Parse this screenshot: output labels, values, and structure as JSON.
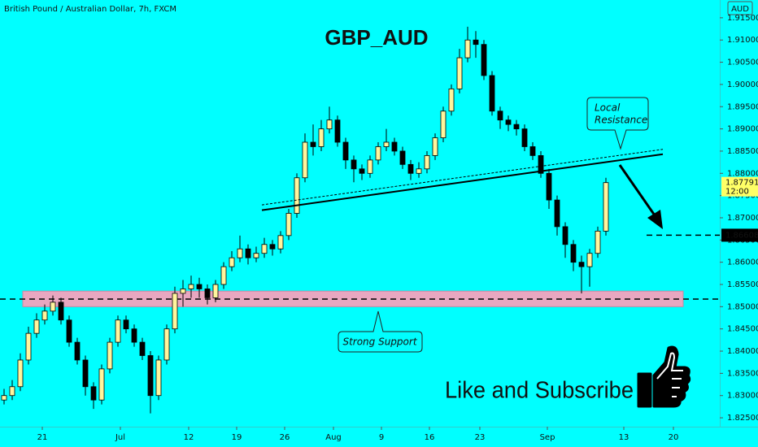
{
  "chart_data": {
    "type": "candlestick",
    "title": "GBP_AUD",
    "symbol": "British Pound / Australian Dollar, 7h, FXCM",
    "currency": "AUD",
    "countdown": "12:00",
    "up_color": "#fff59d",
    "down_color": "#000000",
    "background": "#00ffff",
    "x": [
      0.5,
      1.5,
      2.5,
      3.5,
      4.5,
      5.5,
      6.5,
      7.5,
      8.5,
      9.5,
      10.5,
      11.5,
      12.5,
      13.5,
      14.5,
      15.5,
      16.5,
      17.5,
      18.5,
      19.5,
      20.5,
      21.5,
      22.5,
      23.5,
      24.5,
      25.5,
      26.5,
      27.5,
      28.5,
      29.5,
      30.5,
      31.5,
      32.5,
      33.5,
      34.5,
      35.5,
      36.5,
      37.5,
      38.5,
      39.5,
      40.5,
      41.5,
      42.5,
      43.5,
      44.5,
      45.5,
      46.5,
      47.5,
      48.5,
      49.5,
      50.5,
      51.5,
      52.5,
      53.5,
      54.5,
      55.5,
      56.5,
      57.5,
      58.5,
      59.5,
      60.5,
      61.5,
      62.5,
      63.5,
      64.5,
      65.5,
      66.5,
      67.5,
      68.5,
      69.5,
      70.5,
      71.5,
      72.5,
      73.5,
      74.5
    ],
    "open": [
      1.829,
      1.83,
      1.832,
      1.838,
      1.844,
      1.847,
      1.849,
      1.851,
      1.847,
      1.842,
      1.838,
      1.832,
      1.829,
      1.836,
      1.842,
      1.847,
      1.845,
      1.842,
      1.839,
      1.83,
      1.838,
      1.845,
      1.853,
      1.854,
      1.855,
      1.854,
      1.852,
      1.855,
      1.859,
      1.861,
      1.863,
      1.861,
      1.862,
      1.864,
      1.863,
      1.866,
      1.871,
      1.879,
      1.887,
      1.886,
      1.89,
      1.892,
      1.887,
      1.883,
      1.881,
      1.88,
      1.883,
      1.886,
      1.887,
      1.885,
      1.882,
      1.88,
      1.881,
      1.884,
      1.888,
      1.894,
      1.899,
      1.906,
      1.91,
      1.909,
      1.902,
      1.894,
      1.892,
      1.891,
      1.89,
      1.886,
      1.884,
      1.88,
      1.874,
      1.868,
      1.864,
      1.86,
      1.859,
      1.862,
      1.867
    ],
    "high": [
      1.8315,
      1.8335,
      1.8395,
      1.8455,
      1.8485,
      1.8505,
      1.8525,
      1.852,
      1.848,
      1.843,
      1.839,
      1.833,
      1.837,
      1.843,
      1.848,
      1.848,
      1.846,
      1.843,
      1.84,
      1.839,
      1.846,
      1.8545,
      1.856,
      1.857,
      1.8565,
      1.855,
      1.856,
      1.86,
      1.8625,
      1.866,
      1.864,
      1.8635,
      1.8655,
      1.865,
      1.867,
      1.872,
      1.88,
      1.889,
      1.891,
      1.892,
      1.895,
      1.893,
      1.888,
      1.884,
      1.882,
      1.884,
      1.887,
      1.89,
      1.888,
      1.886,
      1.883,
      1.8825,
      1.885,
      1.889,
      1.895,
      1.9,
      1.908,
      1.913,
      1.912,
      1.91,
      1.903,
      1.895,
      1.893,
      1.892,
      1.891,
      1.887,
      1.885,
      1.881,
      1.875,
      1.869,
      1.865,
      1.8615,
      1.863,
      1.868,
      1.879
    ],
    "low": [
      1.828,
      1.829,
      1.831,
      1.837,
      1.843,
      1.846,
      1.848,
      1.846,
      1.841,
      1.837,
      1.83,
      1.827,
      1.828,
      1.835,
      1.841,
      1.844,
      1.841,
      1.838,
      1.826,
      1.829,
      1.837,
      1.844,
      1.85,
      1.852,
      1.852,
      1.8505,
      1.851,
      1.854,
      1.858,
      1.86,
      1.8595,
      1.86,
      1.861,
      1.8615,
      1.862,
      1.865,
      1.87,
      1.878,
      1.884,
      1.885,
      1.889,
      1.886,
      1.881,
      1.878,
      1.8785,
      1.879,
      1.882,
      1.885,
      1.884,
      1.881,
      1.8785,
      1.879,
      1.88,
      1.883,
      1.887,
      1.893,
      1.898,
      1.905,
      1.906,
      1.901,
      1.893,
      1.89,
      1.8895,
      1.8885,
      1.885,
      1.883,
      1.879,
      1.872,
      1.866,
      1.861,
      1.858,
      1.853,
      1.8545,
      1.861,
      1.866
    ],
    "close": [
      1.83,
      1.832,
      1.838,
      1.844,
      1.847,
      1.849,
      1.851,
      1.847,
      1.842,
      1.838,
      1.832,
      1.829,
      1.836,
      1.842,
      1.847,
      1.845,
      1.842,
      1.839,
      1.83,
      1.838,
      1.845,
      1.853,
      1.854,
      1.855,
      1.854,
      1.852,
      1.855,
      1.859,
      1.861,
      1.863,
      1.861,
      1.862,
      1.864,
      1.863,
      1.866,
      1.871,
      1.879,
      1.887,
      1.886,
      1.89,
      1.892,
      1.887,
      1.883,
      1.881,
      1.88,
      1.883,
      1.886,
      1.887,
      1.885,
      1.882,
      1.88,
      1.881,
      1.884,
      1.888,
      1.894,
      1.899,
      1.906,
      1.91,
      1.909,
      1.902,
      1.894,
      1.892,
      1.891,
      1.89,
      1.886,
      1.884,
      1.88,
      1.874,
      1.868,
      1.864,
      1.86,
      1.859,
      1.862,
      1.867,
      1.87791
    ],
    "xlim": [
      0,
      88.5
    ],
    "xticks": [
      {
        "value": 5.2,
        "label": "21"
      },
      {
        "value": 14.8,
        "label": "Jul"
      },
      {
        "value": 23.2,
        "label": "12"
      },
      {
        "value": 29.1,
        "label": "19"
      },
      {
        "value": 35,
        "label": "26"
      },
      {
        "value": 41,
        "label": "Aug"
      },
      {
        "value": 46.9,
        "label": "9"
      },
      {
        "value": 52.8,
        "label": "16"
      },
      {
        "value": 59,
        "label": "23"
      },
      {
        "value": 67.3,
        "label": "Sep"
      },
      {
        "value": 76.7,
        "label": "13"
      },
      {
        "value": 82.8,
        "label": "20"
      }
    ],
    "ylim": [
      1.823,
      1.919
    ],
    "yticks": [
      {
        "value": 1.825,
        "label": "1.82500"
      },
      {
        "value": 1.83,
        "label": "1.83000"
      },
      {
        "value": 1.835,
        "label": "1.83500"
      },
      {
        "value": 1.84,
        "label": "1.84000"
      },
      {
        "value": 1.845,
        "label": "1.84500"
      },
      {
        "value": 1.85,
        "label": "1.85000"
      },
      {
        "value": 1.855,
        "label": "1.85500"
      },
      {
        "value": 1.86,
        "label": "1.86000"
      },
      {
        "value": 1.865,
        "label": "1.86500"
      },
      {
        "value": 1.87,
        "label": "1.87000"
      },
      {
        "value": 1.875,
        "label": "1.87500"
      },
      {
        "value": 1.88,
        "label": "1.88000"
      },
      {
        "value": 1.885,
        "label": "1.88500"
      },
      {
        "value": 1.89,
        "label": "1.89000"
      },
      {
        "value": 1.895,
        "label": "1.89500"
      },
      {
        "value": 1.9,
        "label": "1.90000"
      },
      {
        "value": 1.905,
        "label": "1.90500"
      },
      {
        "value": 1.91,
        "label": "1.91000"
      },
      {
        "value": 1.915,
        "label": "1.91500"
      }
    ],
    "grid": false,
    "support_zone": [
      1.85,
      1.8535
    ],
    "support_level": 1.8517,
    "target_level": 1.86608,
    "trendline": {
      "x": [
        32.2,
        81.5
      ],
      "y": [
        1.8717,
        1.8843
      ]
    },
    "trendline_dotted": {
      "x": [
        32.2,
        81.5
      ],
      "y": [
        1.8729,
        1.8854
      ]
    },
    "annotations": {
      "resistance": [
        "Local",
        "Resistance"
      ],
      "support": "Strong Support",
      "cta": "Like and Subscribe"
    }
  }
}
